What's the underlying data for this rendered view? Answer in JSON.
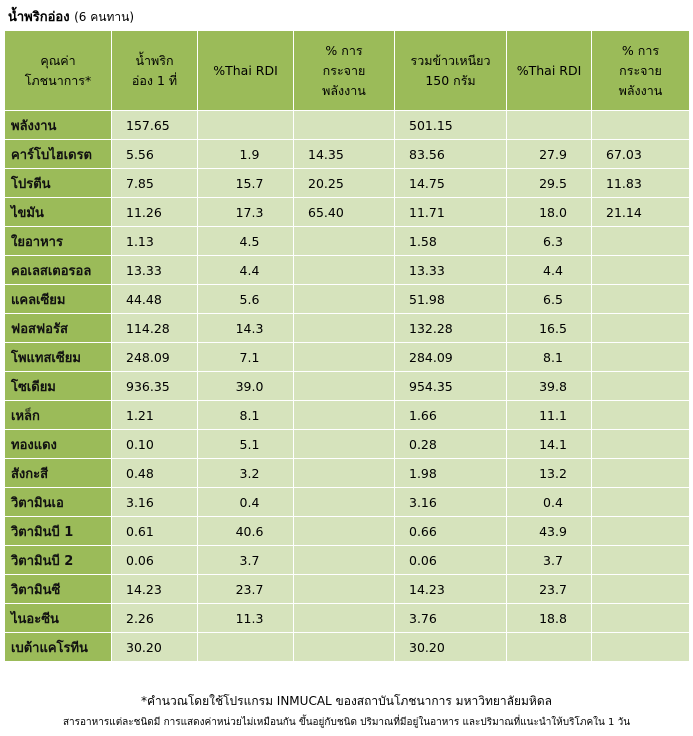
{
  "title": "น้ำพริกอ่อง",
  "title_sub": "(6 คนทาน)",
  "table": {
    "headers": [
      "คุณค่า\nโภชนาการ*",
      "น้ำพริก\nอ่อง 1 ที่",
      "%Thai RDI",
      "% การ\nกระจาย\nพลังงาน",
      "รวมข้าวเหนียว\n150 กรัม",
      "%Thai RDI",
      "% การ\nกระจาย\nพลังงาน"
    ],
    "rows": [
      {
        "name": "พลังงาน",
        "cells": [
          "157.65",
          "",
          "",
          "501.15",
          "",
          ""
        ]
      },
      {
        "name": "คาร์โบไฮเดรต",
        "cells": [
          "5.56",
          "1.9",
          "14.35",
          "83.56",
          "27.9",
          "67.03"
        ]
      },
      {
        "name": "โปรตีน",
        "cells": [
          "7.85",
          "15.7",
          "20.25",
          "14.75",
          "29.5",
          "11.83"
        ]
      },
      {
        "name": "ไขมัน",
        "cells": [
          "11.26",
          "17.3",
          "65.40",
          "11.71",
          "18.0",
          "21.14"
        ]
      },
      {
        "name": "ใยอาหาร",
        "cells": [
          "1.13",
          "4.5",
          "",
          "1.58",
          "6.3",
          ""
        ]
      },
      {
        "name": "คอเลสเตอรอล",
        "cells": [
          "13.33",
          "4.4",
          "",
          "13.33",
          "4.4",
          ""
        ]
      },
      {
        "name": "แคลเซียม",
        "cells": [
          "44.48",
          "5.6",
          "",
          "51.98",
          "6.5",
          ""
        ]
      },
      {
        "name": "ฟอสฟอรัส",
        "cells": [
          "114.28",
          "14.3",
          "",
          "132.28",
          "16.5",
          ""
        ]
      },
      {
        "name": "โพแทสเซียม",
        "cells": [
          "248.09",
          "7.1",
          "",
          "284.09",
          "8.1",
          ""
        ]
      },
      {
        "name": "โซเดียม",
        "cells": [
          "936.35",
          "39.0",
          "",
          "954.35",
          "39.8",
          ""
        ]
      },
      {
        "name": "เหล็ก",
        "cells": [
          "1.21",
          "8.1",
          "",
          "1.66",
          "11.1",
          ""
        ]
      },
      {
        "name": "ทองแดง",
        "cells": [
          "0.10",
          "5.1",
          "",
          "0.28",
          "14.1",
          ""
        ]
      },
      {
        "name": "สังกะสี",
        "cells": [
          "0.48",
          "3.2",
          "",
          "1.98",
          "13.2",
          ""
        ]
      },
      {
        "name": "วิตามินเอ",
        "cells": [
          "3.16",
          "0.4",
          "",
          "3.16",
          "0.4",
          ""
        ]
      },
      {
        "name": "วิตามินบี 1",
        "cells": [
          "0.61",
          "40.6",
          "",
          "0.66",
          "43.9",
          ""
        ]
      },
      {
        "name": "วิตามินบี 2",
        "cells": [
          "0.06",
          "3.7",
          "",
          "0.06",
          "3.7",
          ""
        ]
      },
      {
        "name": "วิตามินซี",
        "cells": [
          "14.23",
          "23.7",
          "",
          "14.23",
          "23.7",
          ""
        ]
      },
      {
        "name": "ไนอะซีน",
        "cells": [
          "2.26",
          "11.3",
          "",
          "3.76",
          "18.8",
          ""
        ]
      },
      {
        "name": "เบต้าแคโรทีน",
        "cells": [
          "30.20",
          "",
          "",
          "30.20",
          "",
          ""
        ]
      }
    ]
  },
  "footnote": "*คำนวณโดยใช้โปรแกรม INMUCAL ของสถาบันโภชนาการ มหาวิทยาลัยมหิดล",
  "footnote2": "สารอาหารแต่ละชนิดมี การแสดงค่าหน่วยไม่เหมือนกัน ขึ้นอยู่กับชนิด ปริมาณที่มีอยู่ในอาหาร และปริมาณที่แนะนำให้บริโภคใน 1 วัน",
  "colors": {
    "header_bg": "#9bbb59",
    "cell_bg": "#d6e3bc",
    "border": "#ffffff"
  }
}
